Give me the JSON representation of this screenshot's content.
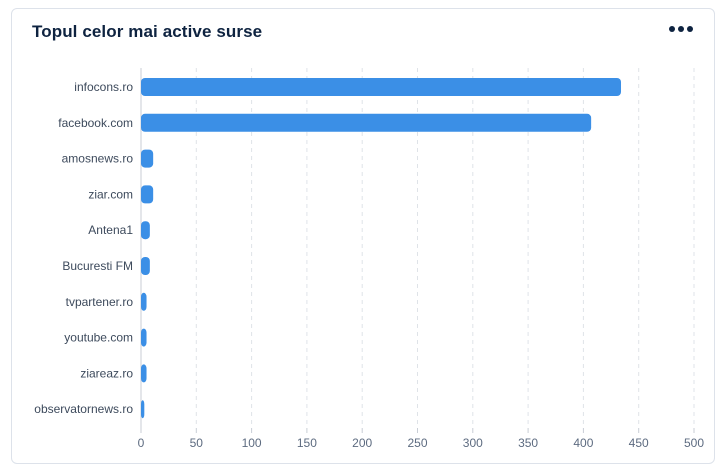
{
  "card": {
    "title": "Topul celor mai active surse",
    "menu_icon": "more-horizontal-icon"
  },
  "colors": {
    "bar": "#3b8fe6",
    "grid": "#dfe3e8",
    "title": "#0e2340"
  },
  "chart_data": {
    "type": "bar",
    "orientation": "horizontal",
    "title": "Topul celor mai active surse",
    "categories": [
      "infocons.ro",
      "facebook.com",
      "amosnews.ro",
      "ziar.com",
      "Antena1",
      "Bucuresti FM",
      "tvpartener.ro",
      "youtube.com",
      "ziareaz.ro",
      "observatornews.ro"
    ],
    "values": [
      434,
      407,
      11,
      11,
      8,
      8,
      5,
      5,
      5,
      3
    ],
    "xlim": [
      0,
      500
    ],
    "xticks": [
      0,
      50,
      100,
      150,
      200,
      250,
      300,
      350,
      400,
      450,
      500
    ],
    "grid": "vertical dashed",
    "legend": "none",
    "xlabel": "",
    "ylabel": ""
  }
}
